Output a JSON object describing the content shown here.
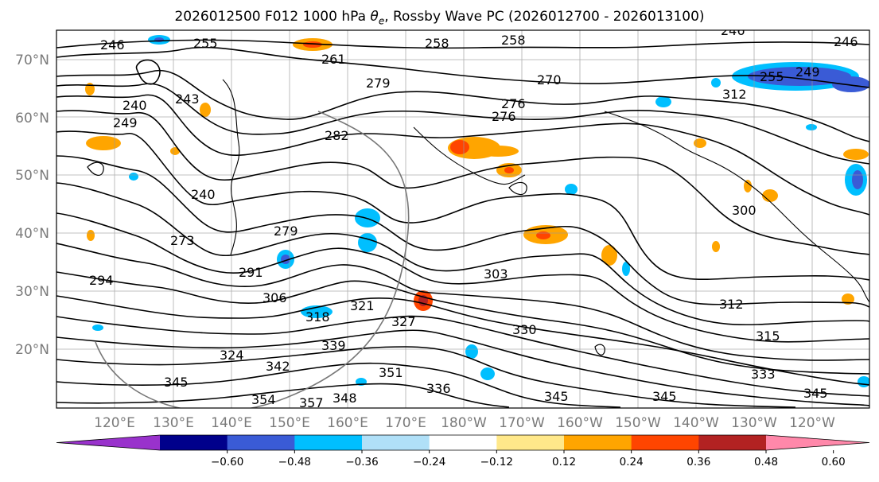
{
  "figure": {
    "title": "2026012500 F012 1000 hPa θe, Rossby Wave PC (2026012700 - 2026013100)",
    "title_prefix": "2026012500 F012 1000 hPa ",
    "title_symbol": "θe",
    "title_suffix": ", Rossby Wave PC (2026012700 - 2026013100)"
  },
  "map": {
    "lat_labels": [
      "70°N",
      "60°N",
      "50°N",
      "40°N",
      "30°N",
      "20°N"
    ],
    "lon_labels": [
      "120°E",
      "130°E",
      "140°E",
      "150°E",
      "160°E",
      "170°E",
      "180°W",
      "170°W",
      "160°W",
      "150°W",
      "140°W",
      "130°W",
      "120°W"
    ],
    "contour_labels": [
      "246",
      "255",
      "258",
      "240",
      "261",
      "258",
      "246",
      "246",
      "243",
      "240",
      "249",
      "279",
      "270",
      "276",
      "276",
      "282",
      "255",
      "249",
      "312",
      "273",
      "279",
      "291",
      "303",
      "300",
      "294",
      "306",
      "318",
      "321",
      "327",
      "330",
      "324",
      "312",
      "315",
      "342",
      "339",
      "351",
      "333",
      "345",
      "354",
      "357",
      "348",
      "345",
      "345",
      "345",
      "336"
    ],
    "colors": {
      "coast": "#000000",
      "grid": "#999999",
      "contour": "#000000",
      "circle": "#777777"
    }
  },
  "colorbar": {
    "ticks": [
      "−0.60",
      "−0.48",
      "−0.36",
      "−0.24",
      "−0.12",
      "0.12",
      "0.24",
      "0.36",
      "0.48",
      "0.60"
    ],
    "colors": [
      "#9932cc",
      "#00008b",
      "#3a5bd6",
      "#00bfff",
      "#b0e0f8",
      "#ffffff",
      "#ffe88a",
      "#ffa500",
      "#ff4500",
      "#b22222",
      "#ff88aa"
    ]
  }
}
